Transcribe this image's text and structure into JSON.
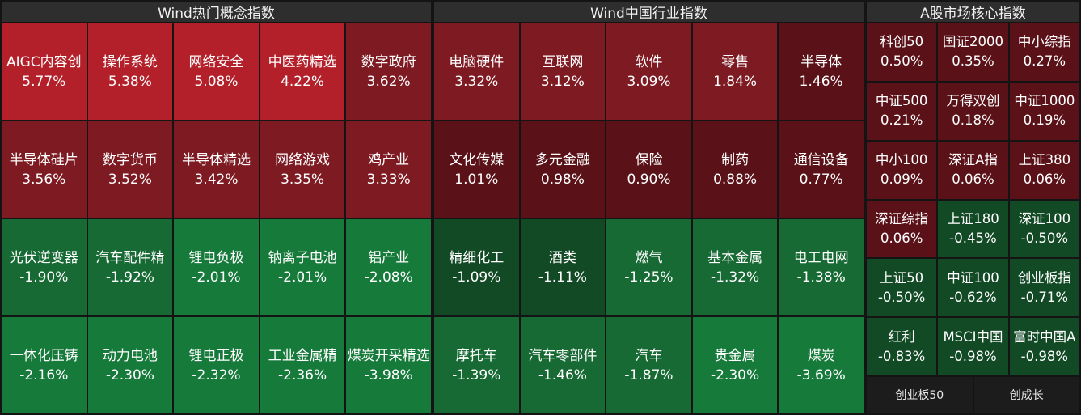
{
  "panels": [
    {
      "title": "Wind热门概念指数",
      "tiles": [
        {
          "name": "AIGC内容创",
          "change": "5.77%",
          "value": 5.77
        },
        {
          "name": "操作系统",
          "change": "5.38%",
          "value": 5.38
        },
        {
          "name": "网络安全",
          "change": "5.08%",
          "value": 5.08
        },
        {
          "name": "中医药精选",
          "change": "4.22%",
          "value": 4.22
        },
        {
          "name": "数字政府",
          "change": "3.62%",
          "value": 3.62
        },
        {
          "name": "半导体硅片",
          "change": "3.56%",
          "value": 3.56
        },
        {
          "name": "数字货币",
          "change": "3.52%",
          "value": 3.52
        },
        {
          "name": "半导体精选",
          "change": "3.42%",
          "value": 3.42
        },
        {
          "name": "网络游戏",
          "change": "3.35%",
          "value": 3.35
        },
        {
          "name": "鸡产业",
          "change": "3.33%",
          "value": 3.33
        },
        {
          "name": "光伏逆变器",
          "change": "-1.90%",
          "value": -1.9
        },
        {
          "name": "汽车配件精",
          "change": "-1.92%",
          "value": -1.92
        },
        {
          "name": "锂电负极",
          "change": "-2.01%",
          "value": -2.01
        },
        {
          "name": "钠离子电池",
          "change": "-2.01%",
          "value": -2.01
        },
        {
          "name": "铝产业",
          "change": "-2.08%",
          "value": -2.08
        },
        {
          "name": "一体化压铸",
          "change": "-2.16%",
          "value": -2.16
        },
        {
          "name": "动力电池",
          "change": "-2.30%",
          "value": -2.3
        },
        {
          "name": "锂电正极",
          "change": "-2.32%",
          "value": -2.32
        },
        {
          "name": "工业金属精",
          "change": "-2.36%",
          "value": -2.36
        },
        {
          "name": "煤炭开采精选",
          "change": "-3.98%",
          "value": -3.98
        }
      ]
    },
    {
      "title": "Wind中国行业指数",
      "tiles": [
        {
          "name": "电脑硬件",
          "change": "3.32%",
          "value": 3.32
        },
        {
          "name": "互联网",
          "change": "3.12%",
          "value": 3.12
        },
        {
          "name": "软件",
          "change": "3.09%",
          "value": 3.09
        },
        {
          "name": "零售",
          "change": "1.84%",
          "value": 1.84
        },
        {
          "name": "半导体",
          "change": "1.46%",
          "value": 1.46
        },
        {
          "name": "文化传媒",
          "change": "1.01%",
          "value": 1.01
        },
        {
          "name": "多元金融",
          "change": "0.98%",
          "value": 0.98
        },
        {
          "name": "保险",
          "change": "0.90%",
          "value": 0.9
        },
        {
          "name": "制药",
          "change": "0.88%",
          "value": 0.88
        },
        {
          "name": "通信设备",
          "change": "0.77%",
          "value": 0.77
        },
        {
          "name": "精细化工",
          "change": "-1.09%",
          "value": -1.09
        },
        {
          "name": "酒类",
          "change": "-1.11%",
          "value": -1.11
        },
        {
          "name": "燃气",
          "change": "-1.25%",
          "value": -1.25
        },
        {
          "name": "基本金属",
          "change": "-1.32%",
          "value": -1.32
        },
        {
          "name": "电工电网",
          "change": "-1.38%",
          "value": -1.38
        },
        {
          "name": "摩托车",
          "change": "-1.39%",
          "value": -1.39
        },
        {
          "name": "汽车零部件",
          "change": "-1.46%",
          "value": -1.46
        },
        {
          "name": "汽车",
          "change": "-1.87%",
          "value": -1.87
        },
        {
          "name": "贵金属",
          "change": "-2.30%",
          "value": -2.3
        },
        {
          "name": "煤炭",
          "change": "-3.69%",
          "value": -3.69
        }
      ]
    },
    {
      "title": "A股市场核心指数",
      "tiles": [
        {
          "name": "科创50",
          "change": "0.50%",
          "value": 0.5
        },
        {
          "name": "国证2000",
          "change": "0.35%",
          "value": 0.35
        },
        {
          "name": "中小综指",
          "change": "0.27%",
          "value": 0.27
        },
        {
          "name": "中证500",
          "change": "0.21%",
          "value": 0.21
        },
        {
          "name": "万得双创",
          "change": "0.18%",
          "value": 0.18
        },
        {
          "name": "中证1000",
          "change": "0.19%",
          "value": 0.19
        },
        {
          "name": "中小100",
          "change": "0.09%",
          "value": 0.09
        },
        {
          "name": "深证A指",
          "change": "0.06%",
          "value": 0.06
        },
        {
          "name": "上证380",
          "change": "0.06%",
          "value": 0.06
        },
        {
          "name": "深证综指",
          "change": "0.06%",
          "value": 0.06
        },
        {
          "name": "上证180",
          "change": "-0.45%",
          "value": -0.45
        },
        {
          "name": "深证100",
          "change": "-0.50%",
          "value": -0.5
        },
        {
          "name": "上证50",
          "change": "-0.50%",
          "value": -0.5
        },
        {
          "name": "中证100",
          "change": "-0.62%",
          "value": -0.62
        },
        {
          "name": "创业板指",
          "change": "-0.71%",
          "value": -0.71
        },
        {
          "name": "红利",
          "change": "-0.83%",
          "value": -0.83
        },
        {
          "name": "MSCI中国",
          "change": "-0.98%",
          "value": -0.98
        },
        {
          "name": "富时中国A",
          "change": "-0.98%",
          "value": -0.98
        }
      ],
      "footer": [
        "创业板50",
        "创成长"
      ]
    }
  ],
  "colors": {
    "background": "#141414",
    "header_bg": "#2e2e2e",
    "up_strong": "#b3202a",
    "up_mid": "#7e1a22",
    "up_weak": "#5a1218",
    "down_weak": "#134a26",
    "down_mid": "#176a34",
    "down_strong": "#167a3a",
    "footer_bg": "#1c1c1c"
  }
}
